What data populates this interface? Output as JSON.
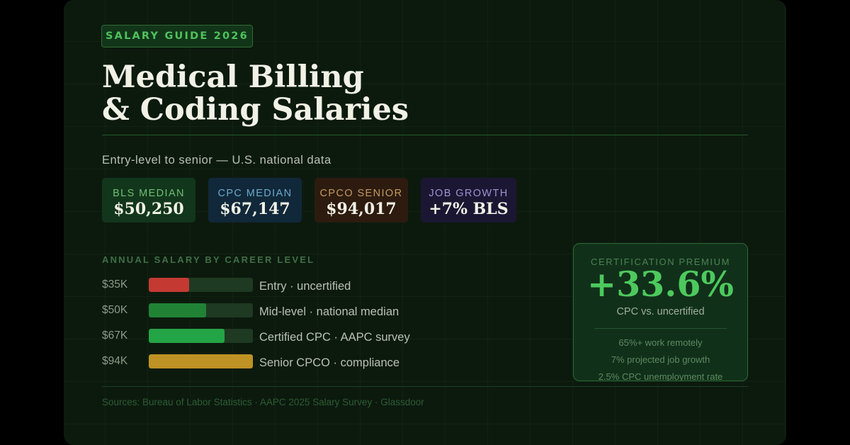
{
  "badge": "SALARY GUIDE 2026",
  "title": {
    "line1": "Medical Billing",
    "line2": "& Coding Salaries"
  },
  "subtitle": "Entry-level to senior — U.S. national data",
  "stats": [
    {
      "label": "BLS MEDIAN",
      "value": "$50,250",
      "bg": "#12361b",
      "label_color": "#6ebe74"
    },
    {
      "label": "CPC MEDIAN",
      "value": "$67,147",
      "bg": "#11283a",
      "label_color": "#6aaac9"
    },
    {
      "label": "CPCO SENIOR",
      "value": "$94,017",
      "bg": "#2d1b0f",
      "label_color": "#c39a62"
    },
    {
      "label": "JOB GROWTH",
      "value": "+7% BLS",
      "bg": "#1b1733",
      "label_color": "#9c94cf"
    }
  ],
  "levels": {
    "title": "ANNUAL SALARY BY CAREER LEVEL",
    "rows": [
      {
        "amount": "$35K",
        "description": "Entry · uncertified",
        "fill": 0.39,
        "color": "#c43a33"
      },
      {
        "amount": "$50K",
        "description": "Mid-level · national median",
        "fill": 0.55,
        "color": "#218236"
      },
      {
        "amount": "$67K",
        "description": "Certified CPC · AAPC survey",
        "fill": 0.73,
        "color": "#23a447"
      },
      {
        "amount": "$94K",
        "description": "Senior CPCO · compliance",
        "fill": 1.0,
        "color": "#be9224"
      }
    ]
  },
  "premium": {
    "label": "CERTIFICATION PREMIUM",
    "value": "+33.6%",
    "subtitle": "CPC vs. uncertified",
    "facts": [
      "65%+ work remotely",
      "7% projected job growth",
      "2.5% CPC unemployment rate"
    ]
  },
  "sources": "Sources: Bureau of Labor Statistics · AAPC 2025 Salary Survey · Glassdoor"
}
